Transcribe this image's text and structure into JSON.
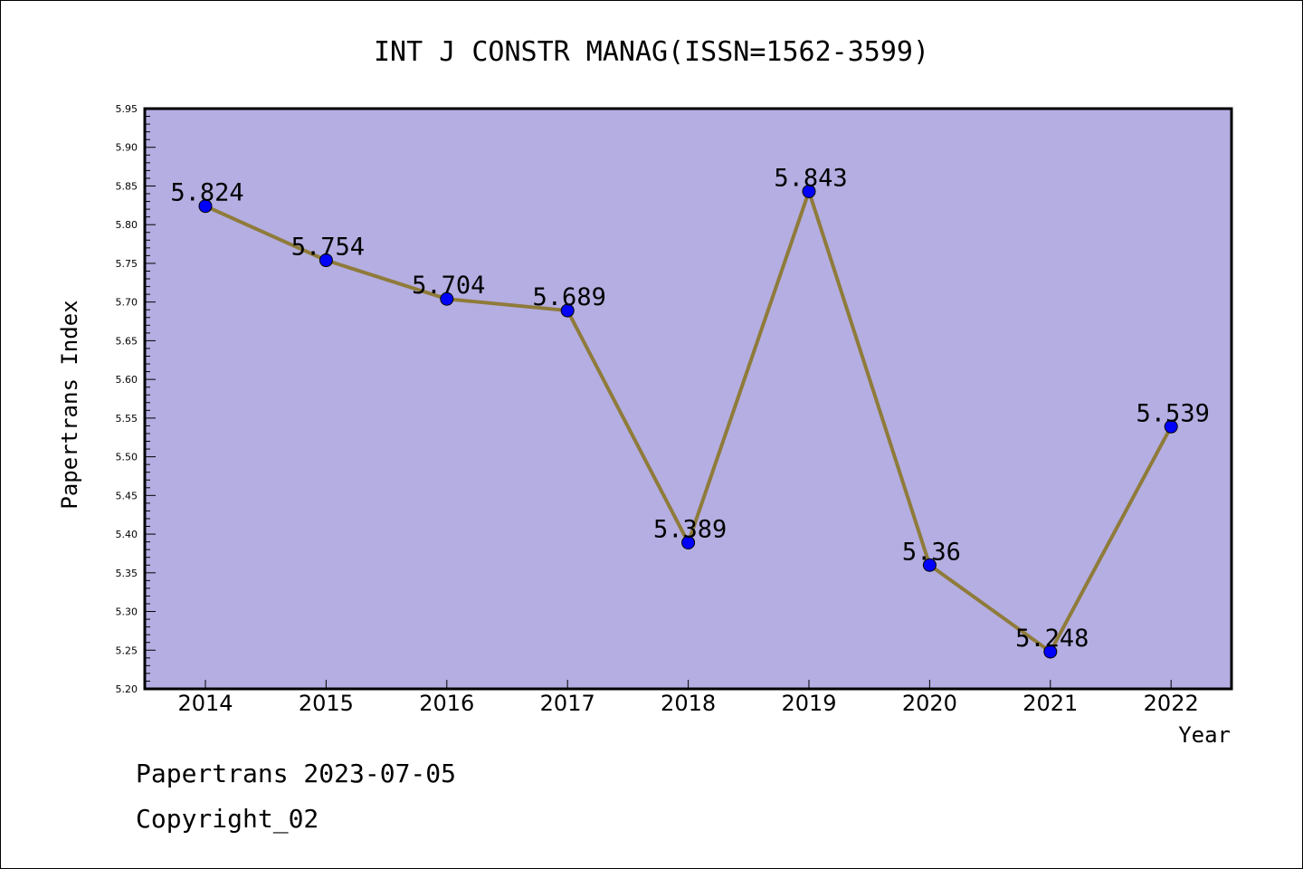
{
  "chart_data": {
    "type": "line",
    "title": "INT J CONSTR MANAG(ISSN=1562-3599)",
    "xlabel": "Year",
    "ylabel": "Papertrans Index",
    "categories": [
      "2014",
      "2015",
      "2016",
      "2017",
      "2018",
      "2019",
      "2020",
      "2021",
      "2022"
    ],
    "values": [
      5.824,
      5.754,
      5.704,
      5.689,
      5.389,
      5.843,
      5.36,
      5.248,
      5.539
    ],
    "data_labels": [
      "5.824",
      "5.754",
      "5.704",
      "5.689",
      "5.389",
      "5.843",
      "5.36",
      "5.248",
      "5.539"
    ],
    "ylim": [
      5.2,
      5.95
    ],
    "yticks": [
      "5.20",
      "5.25",
      "5.30",
      "5.35",
      "5.40",
      "5.45",
      "5.50",
      "5.55",
      "5.60",
      "5.65",
      "5.70",
      "5.75",
      "5.80",
      "5.85",
      "5.90",
      "5.95"
    ],
    "grid": false,
    "colors": {
      "background": "#b4aee2",
      "line": "#8f7b3a",
      "marker": "#0000ff"
    }
  },
  "footer": {
    "line1": "Papertrans 2023-07-05",
    "line2": "Copyright_02"
  }
}
